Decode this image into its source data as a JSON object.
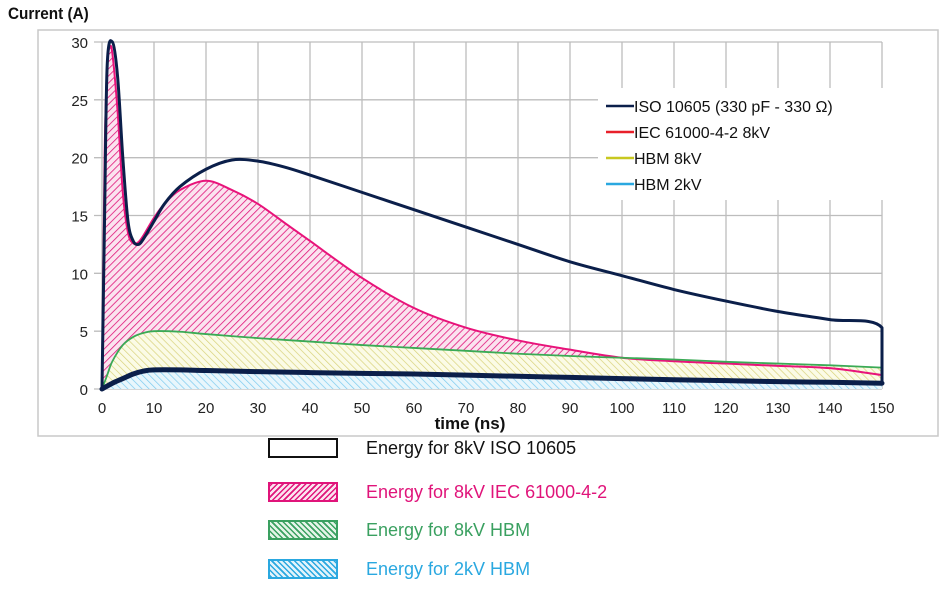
{
  "chart_data": {
    "type": "area",
    "title": "",
    "ylabel": "Current (A)",
    "xlabel": "time (ns)",
    "xlim": [
      0,
      150
    ],
    "ylim": [
      0,
      30
    ],
    "xticks": [
      0,
      10,
      20,
      30,
      40,
      50,
      60,
      70,
      80,
      90,
      100,
      110,
      120,
      130,
      140,
      150
    ],
    "yticks": [
      0,
      5,
      10,
      15,
      20,
      25,
      30
    ],
    "grid": true,
    "legend_position": "top-right",
    "series": [
      {
        "name": "ISO 10605 (330 pF - 330 Ω)",
        "color": "#0b1f4a",
        "fill": "none",
        "x": [
          0,
          0.5,
          1,
          2,
          3,
          4,
          5,
          6,
          7,
          8,
          10,
          12,
          15,
          20,
          25,
          30,
          35,
          40,
          50,
          60,
          70,
          80,
          90,
          100,
          110,
          120,
          130,
          140,
          150,
          150
        ],
        "y": [
          0,
          15,
          28,
          30,
          27,
          20,
          14.5,
          12.8,
          12.5,
          13,
          14.5,
          16,
          17.5,
          19,
          19.8,
          19.7,
          19.2,
          18.5,
          17,
          15.5,
          14,
          12.5,
          11,
          9.8,
          8.6,
          7.6,
          6.7,
          6,
          5.3,
          0.5
        ]
      },
      {
        "name": "IEC 61000-4-2 8kV",
        "color": "#e8137a",
        "fill": "hatched-pink",
        "x": [
          0,
          0.5,
          1,
          1.5,
          2,
          3,
          4,
          5,
          6,
          7,
          8,
          10,
          12,
          15,
          20,
          25,
          30,
          35,
          40,
          50,
          60,
          70,
          80,
          90,
          100,
          110,
          120,
          130,
          140,
          150
        ],
        "y": [
          0,
          20,
          28,
          29.5,
          29,
          24,
          17,
          13.5,
          12.6,
          12.7,
          13.3,
          14.8,
          16,
          17.2,
          18,
          17.2,
          16,
          14.4,
          12.8,
          9.6,
          7,
          5.3,
          4.2,
          3.4,
          2.7,
          2.4,
          2.2,
          2,
          1.8,
          1.2
        ]
      },
      {
        "name": "HBM 8kV",
        "color": "#c8c820",
        "edge_color": "#3aaa55",
        "fill": "hatched-yellow",
        "x": [
          0,
          1,
          2,
          4,
          6,
          8,
          10,
          15,
          20,
          30,
          40,
          50,
          60,
          70,
          80,
          90,
          100,
          110,
          120,
          130,
          140,
          150
        ],
        "y": [
          0,
          1.2,
          2.4,
          3.8,
          4.5,
          4.85,
          5,
          4.95,
          4.75,
          4.4,
          4.1,
          3.8,
          3.55,
          3.3,
          3.05,
          2.85,
          2.7,
          2.55,
          2.35,
          2.2,
          2.05,
          1.85
        ]
      },
      {
        "name": "HBM 2kV",
        "color": "#2aa8e0",
        "edge_color": "#0b1f4a",
        "fill": "hatched-blue",
        "x": [
          0,
          2,
          4,
          6,
          8,
          10,
          15,
          20,
          30,
          40,
          50,
          60,
          70,
          80,
          90,
          100,
          110,
          120,
          130,
          140,
          150
        ],
        "y": [
          0,
          0.5,
          0.9,
          1.3,
          1.55,
          1.65,
          1.65,
          1.6,
          1.5,
          1.42,
          1.35,
          1.3,
          1.2,
          1.1,
          1.0,
          0.9,
          0.8,
          0.72,
          0.64,
          0.58,
          0.5
        ]
      }
    ],
    "legend": [
      {
        "label": "ISO 10605 (330 pF - 330 Ω)",
        "color": "#0b1f4a"
      },
      {
        "label": "IEC 61000-4-2 8kV",
        "color": "#e8202a"
      },
      {
        "label": "HBM 8kV",
        "color": "#c8c820"
      },
      {
        "label": "HBM 2kV",
        "color": "#2aa8e0"
      }
    ],
    "energy_legend": [
      {
        "label": "Energy for 8kV ISO 10605",
        "text_color": "#111111",
        "swatch": "outline",
        "color": "#111111"
      },
      {
        "label": "Energy for 8kV IEC 61000-4-2",
        "text_color": "#e0147a",
        "swatch": "hatch",
        "color": "#e0147a"
      },
      {
        "label": "Energy for 8kV HBM",
        "text_color": "#3aa060",
        "swatch": "hatch",
        "color": "#3aa060"
      },
      {
        "label": "Energy for 2kV HBM",
        "text_color": "#2aa8e0",
        "swatch": "hatch",
        "color": "#2aa8e0"
      }
    ]
  }
}
